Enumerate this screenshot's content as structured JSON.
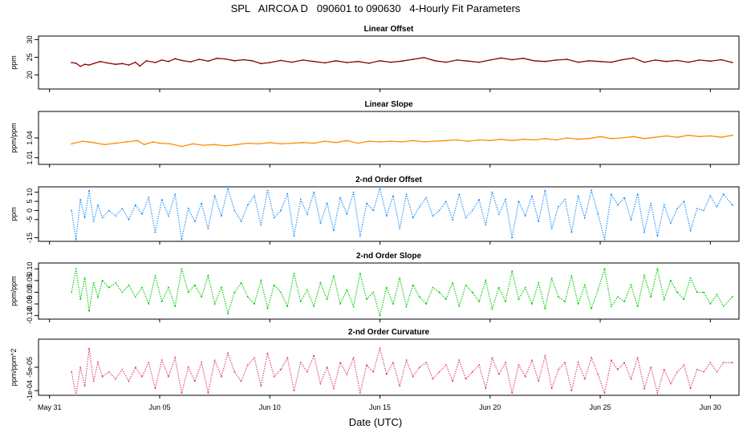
{
  "figure": {
    "title": "SPL   AIRCOA D   090601 to 090630   4-Hourly Fit Parameters",
    "xlabel": "Date (UTC)",
    "x_ticks": [
      {
        "day": 0,
        "label": "May 31"
      },
      {
        "day": 5,
        "label": "Jun 05"
      },
      {
        "day": 10,
        "label": "Jun 10"
      },
      {
        "day": 15,
        "label": "Jun 15"
      },
      {
        "day": 20,
        "label": "Jun 20"
      },
      {
        "day": 25,
        "label": "Jun 25"
      },
      {
        "day": 30,
        "label": "Jun 30"
      }
    ],
    "x_range_days": [
      -0.5,
      31.3
    ]
  },
  "chart_data": [
    {
      "type": "line",
      "title": "Linear Offset",
      "ylabel": "ppm",
      "ylim": [
        16,
        31
      ],
      "yticks": [
        20,
        25,
        30
      ],
      "ytick_labels": [
        "20",
        "25",
        "30"
      ],
      "color": "#8b0000",
      "line_style": "solid",
      "series": [
        {
          "name": "Linear Offset",
          "x": [
            1.0,
            1.2,
            1.4,
            1.6,
            1.8,
            2.0,
            2.3,
            2.6,
            3.0,
            3.3,
            3.6,
            3.9,
            4.1,
            4.4,
            4.8,
            5.1,
            5.4,
            5.7,
            6.0,
            6.4,
            6.8,
            7.2,
            7.6,
            8.0,
            8.4,
            8.8,
            9.2,
            9.6,
            10.0,
            10.5,
            11.0,
            11.5,
            12.0,
            12.5,
            13.0,
            13.5,
            14.0,
            14.5,
            15.0,
            15.5,
            16.0,
            16.5,
            17.0,
            17.5,
            18.0,
            18.5,
            19.0,
            19.5,
            20.0,
            20.5,
            21.0,
            21.5,
            22.0,
            22.5,
            23.0,
            23.5,
            24.0,
            24.5,
            25.0,
            25.5,
            26.0,
            26.5,
            27.0,
            27.5,
            28.0,
            28.5,
            29.0,
            29.5,
            30.0,
            30.5,
            31.0
          ],
          "values": [
            23.5,
            23.3,
            22.4,
            23.0,
            22.8,
            23.2,
            23.8,
            23.4,
            23.0,
            23.2,
            22.8,
            23.6,
            22.5,
            24.0,
            23.5,
            24.2,
            23.8,
            24.6,
            24.1,
            23.7,
            24.4,
            23.9,
            24.7,
            24.5,
            24.0,
            24.3,
            24.0,
            23.2,
            23.5,
            24.1,
            23.6,
            24.2,
            23.8,
            23.4,
            24.0,
            23.5,
            23.8,
            23.3,
            24.0,
            23.6,
            23.9,
            24.4,
            24.9,
            24.0,
            23.6,
            24.2,
            23.9,
            23.6,
            24.2,
            24.8,
            24.3,
            24.7,
            24.0,
            23.8,
            24.2,
            24.4,
            23.6,
            24.0,
            23.8,
            23.6,
            24.3,
            24.8,
            23.6,
            24.2,
            23.8,
            24.1,
            23.6,
            24.2,
            23.9,
            24.3,
            23.5
          ]
        }
      ]
    },
    {
      "type": "line",
      "title": "Linear Slope",
      "ylabel": "ppm/ppm",
      "ylim": [
        1.0,
        1.08
      ],
      "yticks": [
        1.01,
        1.04
      ],
      "ytick_labels": [
        "1.01",
        "1.04"
      ],
      "color": "#ff8c00",
      "line_style": "solid",
      "series": [
        {
          "name": "Linear Slope",
          "x": [
            1.0,
            1.5,
            2.0,
            2.5,
            3.0,
            3.5,
            4.0,
            4.3,
            4.7,
            5.0,
            5.5,
            6.0,
            6.5,
            7.0,
            7.5,
            8.0,
            8.5,
            9.0,
            9.5,
            10.0,
            10.5,
            11.0,
            11.5,
            12.0,
            12.5,
            13.0,
            13.5,
            14.0,
            14.5,
            15.0,
            15.5,
            16.0,
            16.5,
            17.0,
            17.5,
            18.0,
            18.5,
            19.0,
            19.5,
            20.0,
            20.5,
            21.0,
            21.5,
            22.0,
            22.5,
            23.0,
            23.5,
            24.0,
            24.5,
            25.0,
            25.5,
            26.0,
            26.5,
            27.0,
            27.5,
            28.0,
            28.5,
            29.0,
            29.5,
            30.0,
            30.5,
            31.0
          ],
          "values": [
            1.031,
            1.035,
            1.033,
            1.03,
            1.032,
            1.034,
            1.036,
            1.03,
            1.034,
            1.032,
            1.031,
            1.027,
            1.031,
            1.029,
            1.03,
            1.028,
            1.03,
            1.032,
            1.031,
            1.033,
            1.031,
            1.032,
            1.033,
            1.032,
            1.035,
            1.033,
            1.036,
            1.032,
            1.035,
            1.034,
            1.035,
            1.034,
            1.036,
            1.034,
            1.035,
            1.036,
            1.037,
            1.035,
            1.037,
            1.036,
            1.038,
            1.036,
            1.038,
            1.037,
            1.039,
            1.037,
            1.04,
            1.038,
            1.039,
            1.042,
            1.039,
            1.04,
            1.042,
            1.039,
            1.041,
            1.043,
            1.041,
            1.044,
            1.042,
            1.043,
            1.041,
            1.044
          ]
        }
      ]
    },
    {
      "type": "line",
      "title": "2-nd Order Offset",
      "ylabel": "ppm",
      "ylim": [
        -17,
        13
      ],
      "yticks": [
        -15,
        -5,
        0,
        5,
        10
      ],
      "ytick_labels": [
        "-15",
        "-5",
        "0",
        "5",
        "10"
      ],
      "color": "#1e90ff",
      "line_style": "dotted",
      "series": [
        {
          "name": "2-nd Order Offset",
          "x": [
            1.0,
            1.2,
            1.4,
            1.6,
            1.8,
            2.0,
            2.2,
            2.4,
            2.7,
            3.0,
            3.3,
            3.6,
            3.9,
            4.2,
            4.5,
            4.8,
            5.1,
            5.4,
            5.7,
            6.0,
            6.3,
            6.6,
            6.9,
            7.2,
            7.5,
            7.8,
            8.1,
            8.4,
            8.7,
            9.0,
            9.3,
            9.6,
            9.9,
            10.2,
            10.5,
            10.8,
            11.1,
            11.4,
            11.7,
            12.0,
            12.3,
            12.6,
            12.9,
            13.2,
            13.5,
            13.8,
            14.1,
            14.4,
            14.7,
            15.0,
            15.3,
            15.6,
            15.9,
            16.2,
            16.5,
            16.8,
            17.1,
            17.4,
            17.7,
            18.0,
            18.3,
            18.6,
            18.9,
            19.2,
            19.5,
            19.8,
            20.1,
            20.4,
            20.7,
            21.0,
            21.3,
            21.6,
            21.9,
            22.2,
            22.5,
            22.8,
            23.1,
            23.4,
            23.7,
            24.0,
            24.3,
            24.6,
            24.9,
            25.2,
            25.5,
            25.8,
            26.1,
            26.4,
            26.7,
            27.0,
            27.3,
            27.6,
            27.9,
            28.2,
            28.5,
            28.8,
            29.1,
            29.4,
            29.7,
            30.0,
            30.3,
            30.6,
            31.0
          ],
          "values": [
            0,
            -16,
            6,
            -4,
            11,
            -6,
            3,
            -4,
            0,
            -3,
            1,
            -5,
            3,
            -2,
            7,
            -12,
            6,
            -3,
            9,
            -16,
            1,
            -6,
            4,
            -10,
            8,
            -3,
            12,
            0,
            -6,
            3,
            8,
            -8,
            11,
            -4,
            0,
            9,
            -14,
            6,
            -2,
            10,
            -7,
            4,
            -11,
            7,
            -2,
            10,
            -14,
            4,
            0,
            12,
            -3,
            8,
            -10,
            9,
            -4,
            2,
            7,
            -3,
            0,
            5,
            -5,
            9,
            -4,
            0,
            6,
            -8,
            10,
            -2,
            6,
            -15,
            5,
            -3,
            8,
            -6,
            11,
            -10,
            2,
            6,
            -12,
            8,
            -4,
            11,
            -2,
            -16,
            9,
            3,
            7,
            -5,
            9,
            -12,
            4,
            -14,
            3,
            -7,
            1,
            5,
            -11,
            1,
            0,
            8,
            2,
            9,
            3
          ]
        }
      ]
    },
    {
      "type": "line",
      "title": "2-nd Order Slope",
      "ylabel": "ppm/ppm",
      "ylim": [
        -0.115,
        0.125
      ],
      "yticks": [
        -0.1,
        -0.05,
        0.0,
        0.05,
        0.1
      ],
      "ytick_labels": [
        "-0.10",
        "-0.05",
        "0.00",
        "0.05",
        "0.10"
      ],
      "color": "#00cc00",
      "line_style": "dotted",
      "series": [
        {
          "name": "2-nd Order Slope",
          "x": [
            1.0,
            1.2,
            1.4,
            1.6,
            1.8,
            2.0,
            2.2,
            2.4,
            2.7,
            3.0,
            3.3,
            3.6,
            3.9,
            4.2,
            4.5,
            4.8,
            5.1,
            5.4,
            5.7,
            6.0,
            6.3,
            6.6,
            6.9,
            7.2,
            7.5,
            7.8,
            8.1,
            8.4,
            8.7,
            9.0,
            9.3,
            9.6,
            9.9,
            10.2,
            10.5,
            10.8,
            11.1,
            11.4,
            11.7,
            12.0,
            12.3,
            12.6,
            12.9,
            13.2,
            13.5,
            13.8,
            14.1,
            14.4,
            14.7,
            15.0,
            15.3,
            15.6,
            15.9,
            16.2,
            16.5,
            16.8,
            17.1,
            17.4,
            17.7,
            18.0,
            18.3,
            18.6,
            18.9,
            19.2,
            19.5,
            19.8,
            20.1,
            20.4,
            20.7,
            21.0,
            21.3,
            21.6,
            21.9,
            22.2,
            22.5,
            22.8,
            23.1,
            23.4,
            23.7,
            24.0,
            24.3,
            24.6,
            24.9,
            25.2,
            25.5,
            25.8,
            26.1,
            26.4,
            26.7,
            27.0,
            27.3,
            27.6,
            27.9,
            28.2,
            28.5,
            28.8,
            29.1,
            29.4,
            29.7,
            30.0,
            30.3,
            30.6,
            31.0
          ],
          "values": [
            0.0,
            0.1,
            -0.03,
            0.06,
            -0.08,
            0.04,
            -0.02,
            0.05,
            0.02,
            0.04,
            0.0,
            0.03,
            -0.02,
            0.02,
            -0.05,
            0.07,
            -0.04,
            0.02,
            -0.06,
            0.1,
            0.0,
            0.03,
            -0.02,
            0.07,
            -0.05,
            0.02,
            -0.09,
            0.0,
            0.04,
            -0.02,
            -0.05,
            0.05,
            -0.07,
            0.03,
            0.0,
            -0.06,
            0.08,
            -0.04,
            0.01,
            -0.06,
            0.04,
            -0.03,
            0.07,
            -0.05,
            0.01,
            -0.06,
            0.08,
            -0.03,
            0.0,
            -0.1,
            0.02,
            -0.05,
            0.06,
            -0.06,
            0.03,
            -0.02,
            -0.05,
            0.02,
            0.0,
            -0.03,
            0.04,
            -0.06,
            0.03,
            0.0,
            -0.04,
            0.05,
            -0.07,
            0.02,
            -0.04,
            0.09,
            -0.03,
            0.02,
            -0.05,
            0.04,
            -0.07,
            0.06,
            -0.02,
            -0.04,
            0.07,
            -0.05,
            0.03,
            -0.07,
            0.01,
            0.1,
            -0.06,
            -0.02,
            -0.04,
            0.03,
            -0.06,
            0.07,
            -0.02,
            0.1,
            -0.03,
            0.05,
            0.0,
            -0.03,
            0.06,
            0.0,
            0.0,
            -0.05,
            -0.01,
            -0.06,
            -0.02
          ]
        }
      ]
    },
    {
      "type": "line",
      "title": "2-nd Order Curvature",
      "ylabel": "ppm/ppm^2",
      "ylim": [
        -0.00011,
        1e-05
      ],
      "yticks": [
        -0.0001,
        -5e-05
      ],
      "ytick_labels": [
        "-1e-04",
        "-5e-05"
      ],
      "color": "#e0407a",
      "line_style": "dotted",
      "series": [
        {
          "name": "2-nd Order Curvature",
          "x": [
            1.0,
            1.2,
            1.4,
            1.6,
            1.8,
            2.0,
            2.2,
            2.4,
            2.7,
            3.0,
            3.3,
            3.6,
            3.9,
            4.2,
            4.5,
            4.8,
            5.1,
            5.4,
            5.7,
            6.0,
            6.3,
            6.6,
            6.9,
            7.2,
            7.5,
            7.8,
            8.1,
            8.4,
            8.7,
            9.0,
            9.3,
            9.6,
            9.9,
            10.2,
            10.5,
            10.8,
            11.1,
            11.4,
            11.7,
            12.0,
            12.3,
            12.6,
            12.9,
            13.2,
            13.5,
            13.8,
            14.1,
            14.4,
            14.7,
            15.0,
            15.3,
            15.6,
            15.9,
            16.2,
            16.5,
            16.8,
            17.1,
            17.4,
            17.7,
            18.0,
            18.3,
            18.6,
            18.9,
            19.2,
            19.5,
            19.8,
            20.1,
            20.4,
            20.7,
            21.0,
            21.3,
            21.6,
            21.9,
            22.2,
            22.5,
            22.8,
            23.1,
            23.4,
            23.7,
            24.0,
            24.3,
            24.6,
            24.9,
            25.2,
            25.5,
            25.8,
            26.1,
            26.4,
            26.7,
            27.0,
            27.3,
            27.6,
            27.9,
            28.2,
            28.5,
            28.8,
            29.1,
            29.4,
            29.7,
            30.0,
            30.3,
            30.6,
            31.0
          ],
          "values": [
            -6e-05,
            -0.00011,
            -5e-05,
            -9e-05,
            -1e-05,
            -8e-05,
            -4e-05,
            -7e-05,
            -6e-05,
            -7.5e-05,
            -5.5e-05,
            -8e-05,
            -5e-05,
            -7e-05,
            -4e-05,
            -9.5e-05,
            -3.5e-05,
            -7e-05,
            -3e-05,
            -0.000105,
            -5e-05,
            -8e-05,
            -4e-05,
            -0.000105,
            -3.5e-05,
            -7e-05,
            -2e-05,
            -6e-05,
            -8e-05,
            -4.5e-05,
            -3e-05,
            -9e-05,
            -2e-05,
            -7e-05,
            -5.5e-05,
            -3e-05,
            -0.0001,
            -4e-05,
            -6e-05,
            -2.5e-05,
            -8.5e-05,
            -5e-05,
            -9.5e-05,
            -4e-05,
            -6.5e-05,
            -3e-05,
            -0.000105,
            -4.5e-05,
            -6e-05,
            -1e-05,
            -6.5e-05,
            -4e-05,
            -9e-05,
            -3.5e-05,
            -7e-05,
            -5e-05,
            -4e-05,
            -7.5e-05,
            -6e-05,
            -4.5e-05,
            -8e-05,
            -3.5e-05,
            -7.5e-05,
            -6e-05,
            -4.5e-05,
            -9.5e-05,
            -3e-05,
            -6.5e-05,
            -4e-05,
            -0.000105,
            -4.5e-05,
            -7e-05,
            -3.5e-05,
            -8e-05,
            -2.5e-05,
            -9.5e-05,
            -5.5e-05,
            -4e-05,
            -0.0001,
            -4e-05,
            -7.5e-05,
            -3e-05,
            -6.5e-05,
            -0.000105,
            -3.5e-05,
            -5.5e-05,
            -4e-05,
            -7.5e-05,
            -3e-05,
            -9.5e-05,
            -5e-05,
            -0.000105,
            -5.5e-05,
            -8.5e-05,
            -6e-05,
            -4.5e-05,
            -9.5e-05,
            -5.5e-05,
            -6e-05,
            -4e-05,
            -6e-05,
            -4e-05,
            -4e-05
          ]
        }
      ]
    }
  ]
}
